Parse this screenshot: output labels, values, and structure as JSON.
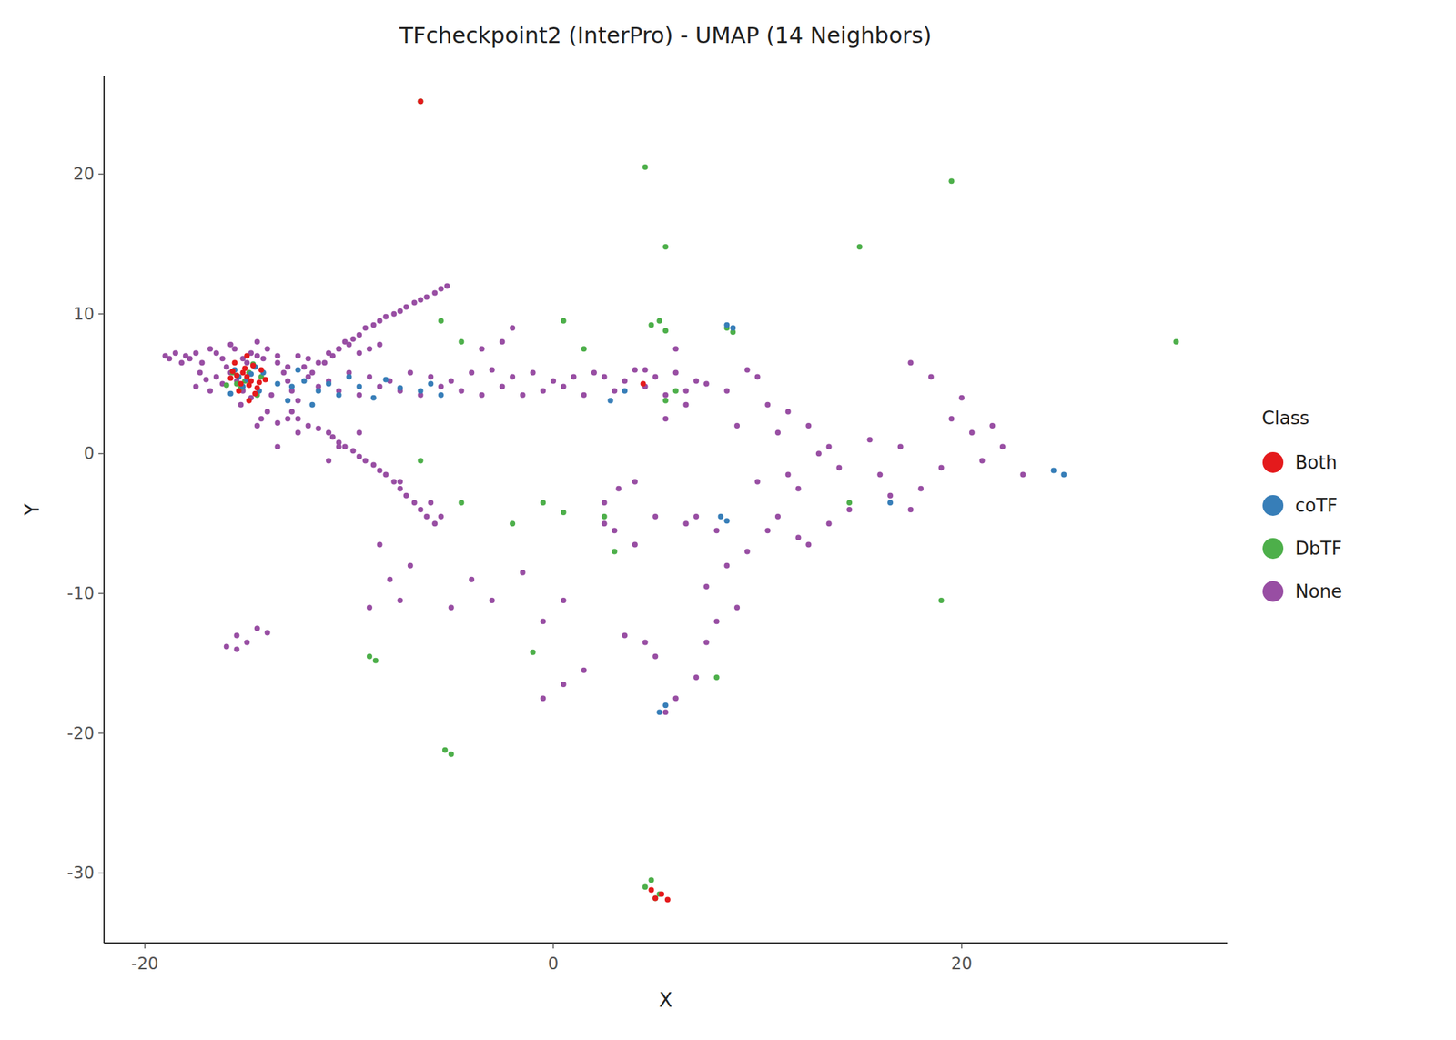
{
  "chart_data": {
    "type": "scatter",
    "title": "TFcheckpoint2 (InterPro) - UMAP (14 Neighbors)",
    "xlabel": "X",
    "ylabel": "Y",
    "legend_title": "Class",
    "xlim": [
      -22,
      33
    ],
    "ylim": [
      -35,
      27
    ],
    "xticks": [
      -20,
      0,
      20
    ],
    "yticks": [
      -30,
      -20,
      -10,
      0,
      10,
      20
    ],
    "grid": false,
    "legend": "right",
    "series": [
      {
        "name": "Both",
        "color": "#e41a1c",
        "x": [
          -15.0,
          -15.2,
          -14.8,
          -15.1,
          -14.9,
          -15.3,
          -14.7,
          -15.5,
          -14.5,
          -15.0,
          -14.4,
          -15.8,
          -14.6,
          -15.6,
          -14.3,
          -14.1,
          -15.4,
          -14.9,
          -15.7,
          5.3,
          5.0,
          4.8,
          5.6,
          -6.5,
          4.4
        ],
        "values": [
          5.5,
          5.8,
          5.2,
          6.1,
          4.9,
          5.0,
          6.3,
          5.6,
          4.7,
          7.0,
          5.1,
          5.4,
          4.3,
          6.5,
          6.0,
          5.3,
          4.5,
          3.8,
          5.9,
          -31.5,
          -31.8,
          -31.2,
          -31.9,
          25.2,
          5.0
        ]
      },
      {
        "name": "coTF",
        "color": "#377eb8",
        "x": [
          -15.0,
          -14.8,
          -15.2,
          -14.6,
          -15.4,
          -14.4,
          -15.6,
          -14.2,
          -15.8,
          -13.5,
          -12.8,
          -12.2,
          -13.0,
          -11.5,
          -11.0,
          -12.5,
          -11.8,
          -10.5,
          -10.0,
          -9.5,
          -8.8,
          -8.2,
          -7.5,
          -6.5,
          -6.0,
          -5.5,
          3.5,
          2.8,
          8.5,
          8.8,
          8.2,
          8.5,
          5.2,
          5.5,
          24.5,
          25.0,
          16.5
        ],
        "values": [
          5.3,
          5.7,
          4.8,
          6.2,
          5.5,
          4.5,
          6.0,
          5.8,
          4.3,
          5.0,
          4.8,
          5.2,
          3.8,
          4.5,
          5.0,
          6.0,
          3.5,
          4.2,
          5.5,
          4.8,
          4.0,
          5.3,
          4.7,
          4.5,
          5.0,
          4.2,
          4.5,
          3.8,
          9.2,
          9.0,
          -4.5,
          -4.8,
          -18.5,
          -18.0,
          -1.2,
          -1.5,
          -3.5
        ]
      },
      {
        "name": "DbTF",
        "color": "#4daf4a",
        "x": [
          -15.1,
          -14.9,
          -15.3,
          -14.7,
          -15.5,
          -14.5,
          -15.7,
          -14.3,
          -16.0,
          -6.5,
          4.5,
          5.5,
          5.2,
          4.8,
          5.5,
          8.5,
          8.8,
          4.5,
          4.8,
          5.2,
          5.0,
          -5.0,
          -5.3,
          19.5,
          15.0,
          19.0,
          30.5,
          -0.5,
          0.5,
          2.5,
          -2.0,
          -9.0,
          -8.7,
          6.0,
          5.5,
          -4.5,
          -5.5,
          8.0,
          1.5,
          14.5,
          -1.0,
          3.0,
          0.5,
          -6.5,
          -4.5
        ],
        "values": [
          5.2,
          5.8,
          4.7,
          6.4,
          5.0,
          4.2,
          5.8,
          5.5,
          4.9,
          25.2,
          20.5,
          14.8,
          9.5,
          9.2,
          8.8,
          9.0,
          8.7,
          -31.0,
          -30.5,
          -31.5,
          -31.8,
          -21.5,
          -21.2,
          19.5,
          14.8,
          -10.5,
          8.0,
          -3.5,
          -4.2,
          -4.5,
          -5.0,
          -14.5,
          -14.8,
          4.5,
          3.8,
          8.0,
          9.5,
          -16.0,
          7.5,
          -3.5,
          -14.2,
          -7.0,
          9.5,
          -0.5,
          -3.5
        ]
      },
      {
        "name": "None",
        "color": "#984ea3",
        "x": [
          -15.5,
          -15.8,
          -15.2,
          -15.0,
          -16.2,
          -14.8,
          -16.5,
          -14.5,
          -16.8,
          -15.3,
          -14.2,
          -16.0,
          -13.8,
          -17.0,
          -14.0,
          -17.3,
          -13.5,
          -14.3,
          -17.5,
          -13.2,
          -12.8,
          -13.0,
          -12.5,
          -12.0,
          -13.5,
          -11.5,
          -12.2,
          -11.0,
          -12.8,
          -10.5,
          -11.8,
          -10.0,
          -12.5,
          -9.5,
          -11.2,
          -9.0,
          -12.0,
          -8.5,
          -10.8,
          -8.0,
          -11.5,
          -7.5,
          -10.5,
          -7.0,
          -11.0,
          -6.5,
          -10.2,
          -6.0,
          -10.8,
          -5.5,
          -9.8,
          -5.0,
          -10.5,
          -4.5,
          -9.5,
          -4.0,
          -10.2,
          -3.5,
          -9.2,
          -3.0,
          -9.8,
          -2.5,
          -8.8,
          -2.0,
          -9.5,
          -1.5,
          -8.5,
          -1.0,
          -9.2,
          -0.5,
          -8.2,
          0.0,
          -8.8,
          0.5,
          -7.8,
          1.0,
          -8.5,
          1.5,
          -7.5,
          2.0,
          -8.2,
          2.5,
          -7.2,
          3.0,
          -7.8,
          3.5,
          -6.8,
          4.0,
          -7.5,
          4.5,
          -6.5,
          -7.2,
          5.0,
          -6.2,
          -6.8,
          5.5,
          -5.8,
          -6.5,
          6.0,
          -5.5,
          -6.2,
          6.5,
          -5.2,
          -5.8,
          7.0,
          -15.0,
          -15.5,
          -16.0,
          -15.2,
          -14.8,
          -15.6,
          -16.2,
          -14.0,
          -13.5,
          -14.5,
          -15.8,
          -16.5,
          -13.0,
          -16.8,
          -12.5,
          -17.2,
          -12.0,
          -17.5,
          -11.5,
          -17.8,
          -11.0,
          -18.0,
          -10.5,
          -18.2,
          -10.0,
          -18.5,
          -9.5,
          -18.8,
          -9.0,
          -19.0,
          -8.5,
          -14.5,
          -14.0,
          -15.5,
          -13.5,
          -8.5,
          -7.0,
          6.5,
          7.0,
          8.0,
          10.0,
          11.5,
          12.0,
          5.5,
          4.5,
          6.0,
          9.0,
          10.5,
          11.0,
          -1.5,
          0.5,
          -0.5,
          7.5,
          8.5,
          9.5,
          13.5,
          14.0,
          15.5,
          5.0,
          6.5,
          7.5,
          -3.0,
          -4.0,
          -5.0,
          12.5,
          13.0,
          11.5,
          16.0,
          17.0,
          16.5,
          8.5,
          9.5,
          10.0,
          4.5,
          5.0,
          3.5,
          18.0,
          19.0,
          17.5,
          11.0,
          12.0,
          10.5,
          20.5,
          21.0,
          19.5,
          -7.5,
          -8.0,
          -9.0,
          6.0,
          7.0,
          5.5,
          3.0,
          4.0,
          2.5,
          -2.5,
          -3.5,
          -2.0,
          13.5,
          14.5,
          12.5,
          22.0,
          23.0,
          21.5,
          -10.5,
          -11.0,
          -9.5,
          8.0,
          9.0,
          7.5,
          0.5,
          1.5,
          -0.5,
          -6.0,
          -7.5,
          -5.5,
          -14.5,
          -13.0,
          -12.5,
          3.2,
          4.0,
          2.5,
          18.5,
          20.0,
          17.5
        ],
        "values": [
          5.2,
          5.8,
          4.5,
          6.5,
          5.0,
          4.0,
          5.5,
          7.0,
          4.5,
          3.5,
          6.8,
          6.2,
          4.2,
          5.3,
          3.0,
          5.8,
          6.5,
          2.5,
          4.8,
          5.8,
          4.5,
          5.2,
          3.8,
          5.5,
          2.2,
          4.8,
          6.2,
          5.2,
          3.0,
          4.5,
          5.8,
          5.8,
          2.5,
          4.2,
          6.5,
          5.5,
          2.0,
          4.8,
          7.0,
          5.2,
          1.8,
          4.5,
          7.5,
          5.8,
          1.5,
          4.2,
          8.0,
          5.5,
          1.2,
          4.8,
          8.2,
          5.2,
          0.8,
          4.5,
          8.5,
          5.8,
          0.5,
          4.2,
          9.0,
          6.0,
          0.2,
          4.8,
          9.2,
          5.5,
          -0.2,
          4.2,
          9.5,
          5.8,
          -0.5,
          4.5,
          9.8,
          5.2,
          -0.8,
          4.8,
          10.0,
          5.5,
          -1.2,
          4.2,
          10.2,
          5.8,
          -1.5,
          5.5,
          10.5,
          4.5,
          -2.0,
          5.2,
          10.8,
          6.0,
          -2.5,
          4.8,
          11.0,
          -3.0,
          5.5,
          11.2,
          -3.5,
          4.2,
          11.5,
          -4.0,
          5.8,
          11.8,
          -4.5,
          4.5,
          12.0,
          -5.0,
          5.2,
          -13.5,
          -13.0,
          -13.8,
          6.8,
          7.2,
          7.5,
          6.8,
          7.5,
          7.0,
          8.0,
          7.8,
          7.2,
          6.2,
          7.5,
          7.0,
          6.5,
          6.8,
          7.2,
          6.5,
          6.8,
          7.2,
          7.0,
          7.5,
          6.5,
          7.8,
          7.2,
          7.2,
          6.8,
          7.5,
          7.0,
          7.8,
          -12.5,
          -12.8,
          -14.0,
          0.5,
          -6.5,
          -8.0,
          -5.0,
          -4.5,
          -5.5,
          -2.0,
          -1.5,
          -2.5,
          2.5,
          6.0,
          7.5,
          2.0,
          3.5,
          1.5,
          -8.5,
          -10.5,
          -12.0,
          -9.5,
          -8.0,
          -7.0,
          0.5,
          -1.0,
          1.0,
          -4.5,
          3.5,
          5.0,
          -10.5,
          -9.0,
          -11.0,
          2.0,
          0.0,
          3.0,
          -1.5,
          0.5,
          -3.0,
          4.5,
          6.0,
          5.5,
          -13.5,
          -14.5,
          -13.0,
          -2.5,
          -1.0,
          -4.0,
          -4.5,
          -6.0,
          -5.5,
          1.5,
          -0.5,
          2.5,
          -10.5,
          -9.0,
          -11.0,
          -17.5,
          -16.0,
          -18.5,
          -5.5,
          -6.5,
          -5.0,
          8.0,
          7.5,
          9.0,
          -5.0,
          -4.0,
          -6.5,
          0.5,
          -1.5,
          2.0,
          0.5,
          -0.5,
          1.5,
          -12.0,
          -11.0,
          -13.5,
          -16.5,
          -15.5,
          -17.5,
          -3.5,
          -2.0,
          -4.5,
          2.0,
          2.5,
          1.5,
          -2.5,
          -2.0,
          -3.5,
          5.5,
          4.0,
          6.5
        ]
      }
    ]
  }
}
